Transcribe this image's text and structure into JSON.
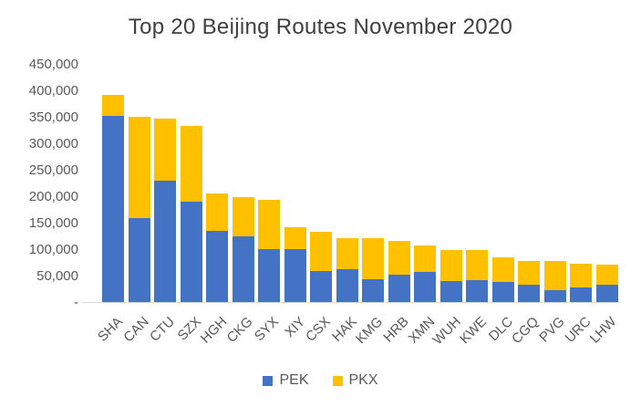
{
  "title": "Top 20 Beijing Routes November 2020",
  "colors": {
    "pek_blue": "#4472C4",
    "pkx_yellow": "#FFC000",
    "axis_text": "#595959",
    "title_text": "#404040",
    "axis_line": "#D9D9D9"
  },
  "chart_data": {
    "type": "bar",
    "stacked": true,
    "title": "Top 20 Beijing Routes November 2020",
    "categories": [
      "SHA",
      "CAN",
      "CTU",
      "SZX",
      "HGH",
      "CKG",
      "SYX",
      "XIY",
      "CSX",
      "HAK",
      "KMG",
      "HRB",
      "XMN",
      "WUH",
      "KWE",
      "DLC",
      "CGQ",
      "PVG",
      "URC",
      "LHW"
    ],
    "series": [
      {
        "name": "PEK",
        "color": "#4472C4",
        "values": [
          352000,
          159000,
          230000,
          190000,
          135000,
          125000,
          100000,
          100000,
          59000,
          63000,
          44000,
          51000,
          57000,
          39000,
          41000,
          38000,
          33000,
          23000,
          28000,
          33000
        ]
      },
      {
        "name": "PKX",
        "color": "#FFC000",
        "values": [
          40000,
          191000,
          118000,
          144000,
          70000,
          74000,
          93000,
          42000,
          74000,
          58000,
          77000,
          65000,
          50000,
          60000,
          57000,
          47000,
          45000,
          54000,
          45000,
          37000
        ]
      }
    ],
    "xlabel": "",
    "ylabel": "",
    "ylim": [
      0,
      450000
    ],
    "ytick_interval": 50000,
    "yticks": [
      {
        "label": "450,000",
        "value": 450000
      },
      {
        "label": "400,000",
        "value": 400000
      },
      {
        "label": "350,000",
        "value": 350000
      },
      {
        "label": "300,000",
        "value": 300000
      },
      {
        "label": "250,000",
        "value": 250000
      },
      {
        "label": "200,000",
        "value": 200000
      },
      {
        "label": "150,000",
        "value": 150000
      },
      {
        "label": "100,000",
        "value": 100000
      },
      {
        "label": "50,000",
        "value": 50000
      },
      {
        "label": "-",
        "value": 0
      }
    ],
    "grid": false,
    "legend_position": "bottom",
    "x_label_rotation_deg": -45
  },
  "legend": {
    "pek_label": "PEK",
    "pkx_label": "PKX"
  }
}
